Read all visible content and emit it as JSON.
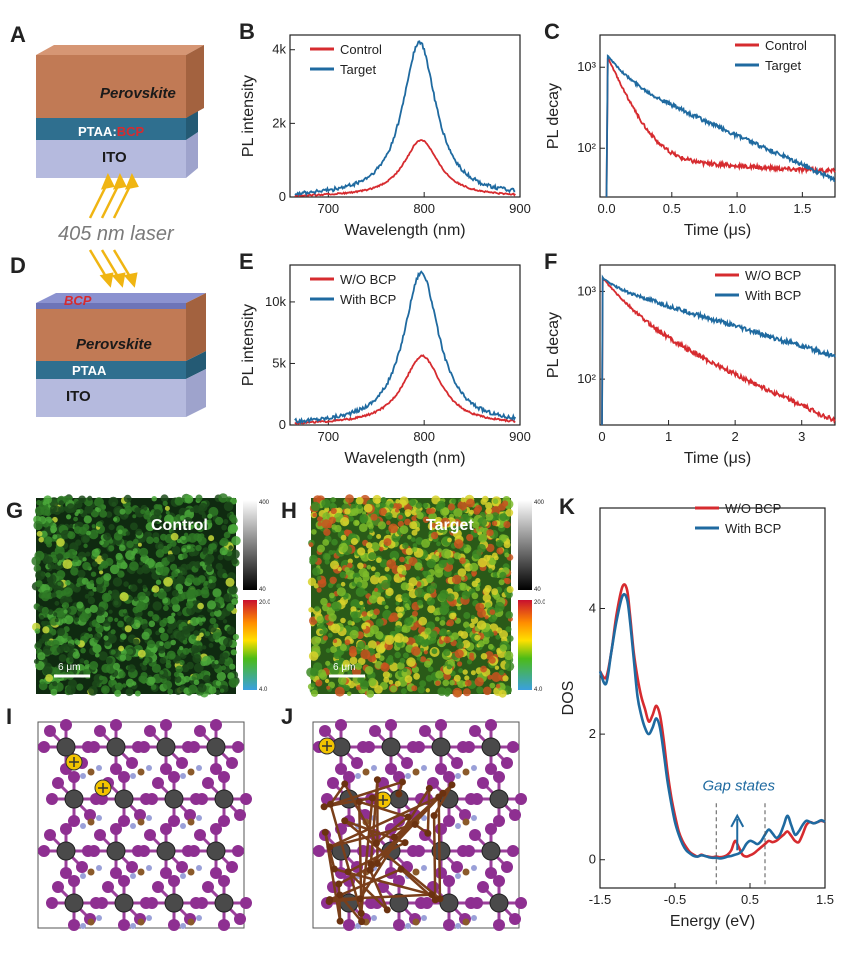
{
  "colors": {
    "control": "#d62b2f",
    "target": "#1f6aa0"
  },
  "panels": {
    "A": {
      "letter": "A",
      "layers": [
        "Perovskite",
        "PTAA",
        "BCP",
        "ITO"
      ],
      "sep": ":"
    },
    "laser": {
      "text": "405 nm laser"
    },
    "D": {
      "letter": "D",
      "layers": [
        "BCP",
        "Perovskite",
        "PTAA",
        "ITO"
      ]
    },
    "G": {
      "letter": "G",
      "title": "Control",
      "scale": "6 μm",
      "cb_top_max": "400",
      "cb_top_min": "40",
      "cb_bot_max": "20.0",
      "cb_bot_min": "4.0"
    },
    "H": {
      "letter": "H",
      "title": "Target",
      "scale": "6 μm",
      "cb_top_max": "400",
      "cb_top_min": "40",
      "cb_bot_max": "20.0",
      "cb_bot_min": "4.0"
    },
    "I": {
      "letter": "I"
    },
    "J": {
      "letter": "J"
    }
  },
  "chart_data": [
    {
      "id": "B",
      "type": "line",
      "letter": "B",
      "xlabel": "Wavelength (nm)",
      "ylabel": "PL intensity",
      "xlim": [
        660,
        900
      ],
      "ylim": [
        0,
        4400
      ],
      "xticks": [
        700,
        800,
        900
      ],
      "yticks": [
        0,
        2000,
        4000
      ],
      "ytick_labels": [
        "0",
        "2k",
        "4k"
      ],
      "series": [
        {
          "name": "Control",
          "color": "#d62b2f",
          "peak_x": 797,
          "peak_y": 1550,
          "width": 22
        },
        {
          "name": "Target",
          "color": "#1f6aa0",
          "peak_x": 795,
          "peak_y": 4200,
          "width": 21
        }
      ]
    },
    {
      "id": "C",
      "type": "line",
      "letter": "C",
      "xlabel": "Time (μs)",
      "ylabel": "PL decay",
      "xlim": [
        -0.05,
        1.75
      ],
      "ylim": [
        25,
        2500
      ],
      "ylog": true,
      "xticks": [
        0.0,
        0.5,
        1.0,
        1.5
      ],
      "xtick_labels": [
        "0.0",
        "0.5",
        "1.0",
        "1.5"
      ],
      "yticks": [
        100,
        1000
      ],
      "ytick_labels": [
        "10²",
        "10³"
      ],
      "series": [
        {
          "name": "Control",
          "color": "#d62b2f",
          "A1": 1350,
          "t1": 0.12,
          "A2": 45,
          "t2": 2.5,
          "floor": 30
        },
        {
          "name": "Target",
          "color": "#1f6aa0",
          "A1": 700,
          "t1": 0.12,
          "A2": 760,
          "t2": 0.6,
          "floor": 0
        }
      ]
    },
    {
      "id": "E",
      "type": "line",
      "letter": "E",
      "xlabel": "Wavelength (nm)",
      "ylabel": "PL intensity",
      "xlim": [
        660,
        900
      ],
      "ylim": [
        0,
        13000
      ],
      "xticks": [
        700,
        800,
        900
      ],
      "yticks": [
        0,
        5000,
        10000
      ],
      "ytick_labels": [
        "0",
        "5k",
        "10k"
      ],
      "series": [
        {
          "name": "W/O BCP",
          "color": "#d62b2f",
          "peak_x": 798,
          "peak_y": 5600,
          "width": 24
        },
        {
          "name": "With BCP",
          "color": "#1f6aa0",
          "peak_x": 797,
          "peak_y": 12400,
          "width": 22
        }
      ]
    },
    {
      "id": "F",
      "type": "line",
      "letter": "F",
      "xlabel": "Time (μs)",
      "ylabel": "PL decay",
      "xlim": [
        -0.03,
        3.5
      ],
      "ylim": [
        30,
        2000
      ],
      "ylog": true,
      "xticks": [
        0,
        1,
        2,
        3
      ],
      "xtick_labels": [
        "0",
        "1",
        "2",
        "3"
      ],
      "yticks": [
        100,
        1000
      ],
      "ytick_labels": [
        "10²",
        "10³"
      ],
      "series": [
        {
          "name": "W/O BCP",
          "color": "#d62b2f",
          "A1": 900,
          "t1": 0.35,
          "A2": 550,
          "t2": 1.25,
          "floor": 0
        },
        {
          "name": "With BCP",
          "color": "#1f6aa0",
          "A1": 300,
          "t1": 0.2,
          "A2": 1150,
          "t2": 1.9,
          "floor": 0
        }
      ]
    },
    {
      "id": "K",
      "type": "line",
      "letter": "K",
      "xlabel": "Energy (eV)",
      "ylabel": "DOS",
      "xlim": [
        -1.5,
        1.5
      ],
      "ylim": [
        -0.45,
        5.6
      ],
      "xticks": [
        -1.5,
        -0.5,
        0.5,
        1.5
      ],
      "xtick_labels": [
        "-1.5",
        "-0.5",
        "0.5",
        "1.5"
      ],
      "yticks": [
        0,
        2,
        4
      ],
      "ytick_labels": [
        "0",
        "2",
        "4"
      ],
      "annotation": "Gap states",
      "dashed_x": [
        0.05,
        0.7
      ],
      "series": [
        {
          "name": "W/O BCP",
          "color": "#d62b2f",
          "x": [
            -1.5,
            -1.42,
            -1.35,
            -1.28,
            -1.2,
            -1.14,
            -1.1,
            -1.05,
            -1.0,
            -0.95,
            -0.9,
            -0.85,
            -0.8,
            -0.75,
            -0.7,
            -0.65,
            -0.6,
            -0.55,
            -0.5,
            -0.45,
            -0.4,
            -0.35,
            -0.3,
            -0.25,
            -0.2,
            -0.15,
            -0.1,
            -0.05,
            0.0,
            0.05,
            0.1,
            0.15,
            0.2,
            0.25,
            0.3,
            0.35,
            0.4,
            0.45,
            0.5,
            0.55,
            0.6,
            0.65,
            0.7,
            0.75,
            0.8,
            0.85,
            0.9,
            0.95,
            1.0,
            1.05,
            1.1,
            1.15,
            1.2,
            1.25,
            1.3,
            1.35,
            1.4,
            1.45,
            1.5
          ],
          "y": [
            3.0,
            2.9,
            3.3,
            3.9,
            4.35,
            4.3,
            3.9,
            3.3,
            2.9,
            2.6,
            2.4,
            2.2,
            2.3,
            2.45,
            2.3,
            1.9,
            1.4,
            1.0,
            0.7,
            0.45,
            0.3,
            0.2,
            0.12,
            0.08,
            0.05,
            0.08,
            0.06,
            0.05,
            0.04,
            0.05,
            0.04,
            0.05,
            0.08,
            0.15,
            0.3,
            0.2,
            0.08,
            0.05,
            0.07,
            0.1,
            0.15,
            0.2,
            0.25,
            0.3,
            0.28,
            0.3,
            0.35,
            0.4,
            0.45,
            0.38,
            0.3,
            0.28,
            0.4,
            0.55,
            0.6,
            0.58,
            0.6,
            0.62,
            0.6
          ]
        },
        {
          "name": "With BCP",
          "color": "#1f6aa0",
          "x": [
            -1.5,
            -1.42,
            -1.35,
            -1.28,
            -1.2,
            -1.14,
            -1.1,
            -1.05,
            -1.0,
            -0.95,
            -0.9,
            -0.85,
            -0.8,
            -0.75,
            -0.7,
            -0.65,
            -0.6,
            -0.55,
            -0.5,
            -0.45,
            -0.4,
            -0.35,
            -0.3,
            -0.25,
            -0.2,
            -0.15,
            -0.1,
            -0.05,
            0.0,
            0.05,
            0.1,
            0.15,
            0.2,
            0.25,
            0.3,
            0.35,
            0.4,
            0.45,
            0.5,
            0.55,
            0.6,
            0.65,
            0.7,
            0.75,
            0.8,
            0.85,
            0.9,
            0.95,
            1.0,
            1.05,
            1.1,
            1.15,
            1.2,
            1.25,
            1.3,
            1.35,
            1.4,
            1.45,
            1.5
          ],
          "y": [
            3.0,
            2.8,
            3.3,
            3.8,
            4.2,
            4.15,
            3.8,
            3.2,
            2.6,
            2.3,
            2.1,
            2.0,
            2.1,
            2.25,
            2.1,
            1.7,
            1.25,
            0.9,
            0.6,
            0.4,
            0.25,
            0.15,
            0.1,
            0.06,
            0.05,
            0.07,
            0.06,
            0.04,
            0.03,
            0.03,
            0.02,
            0.03,
            0.05,
            0.06,
            0.08,
            0.1,
            0.15,
            0.25,
            0.3,
            0.28,
            0.25,
            0.3,
            0.4,
            0.48,
            0.42,
            0.35,
            0.4,
            0.55,
            0.7,
            0.55,
            0.4,
            0.45,
            0.55,
            0.62,
            0.6,
            0.58,
            0.6,
            0.63,
            0.6
          ]
        }
      ]
    }
  ]
}
